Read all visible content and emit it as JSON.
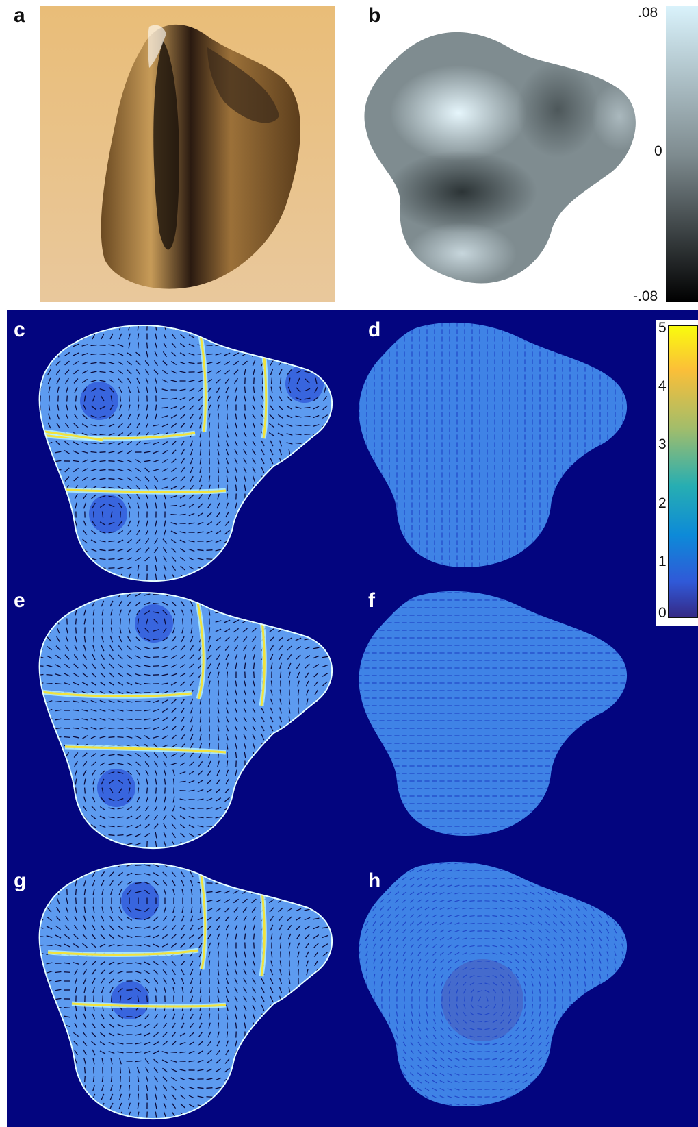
{
  "panel_labels": {
    "a": "a",
    "b": "b",
    "c": "c",
    "d": "d",
    "e": "e",
    "f": "f",
    "g": "g",
    "h": "h"
  },
  "colorbar_gray": {
    "ticks": [
      ".08",
      "0",
      "-.08"
    ],
    "colors": {
      "top": "#d9f2fb",
      "bottom": "#000000"
    }
  },
  "colorbar_parula": {
    "ticks": [
      "5",
      "4",
      "3",
      "2",
      "1",
      "0"
    ],
    "colors": {
      "top": "#f9fb0e",
      "mid": "#27aeb2",
      "bottom": "#352a87"
    }
  },
  "colors": {
    "background_navy": "#03057f",
    "photo_bg": "#e2b36a",
    "field_blue": "#3f83e6",
    "field_flat_blue": "#2f62d6",
    "singular_line": "#f2e23c",
    "arrow_color": "#0b0b3a"
  }
}
